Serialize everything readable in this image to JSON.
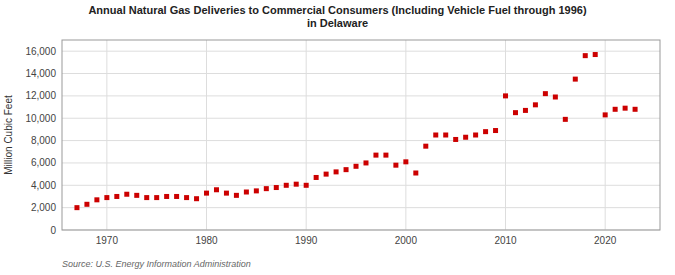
{
  "chart_data": {
    "type": "scatter",
    "title": "Annual Natural Gas Deliveries to Commercial Consumers (Including Vehicle Fuel through 1996)\nin Delaware",
    "ylabel": "Million Cubic Feet",
    "source": "Source: U.S. Energy Information Administration",
    "color": "#cc0000",
    "marker": "square",
    "grid": true,
    "xlim": [
      1965.5,
      2025.5
    ],
    "xticks": [
      1970,
      1980,
      1990,
      2000,
      2010,
      2020
    ],
    "ylim": [
      0,
      17000
    ],
    "yticks": [
      0,
      {
        "value": 2000,
        "label": "2,000"
      },
      {
        "value": 4000,
        "label": "4,000"
      },
      {
        "value": 6000,
        "label": "6,000"
      },
      {
        "value": 8000,
        "label": "8,000"
      },
      {
        "value": 10000,
        "label": "10,000"
      },
      {
        "value": 12000,
        "label": "12,000"
      },
      {
        "value": 14000,
        "label": "14,000"
      },
      {
        "value": 16000,
        "label": "16,000"
      }
    ],
    "x": [
      1967,
      1968,
      1969,
      1970,
      1971,
      1972,
      1973,
      1974,
      1975,
      1976,
      1977,
      1978,
      1979,
      1980,
      1981,
      1982,
      1983,
      1984,
      1985,
      1986,
      1987,
      1988,
      1989,
      1990,
      1991,
      1992,
      1993,
      1994,
      1995,
      1996,
      1997,
      1998,
      1999,
      2000,
      2001,
      2002,
      2003,
      2004,
      2005,
      2006,
      2007,
      2008,
      2009,
      2010,
      2011,
      2012,
      2013,
      2014,
      2015,
      2016,
      2017,
      2018,
      2019,
      2020,
      2021,
      2022,
      2023
    ],
    "values": [
      2000,
      2300,
      2700,
      2900,
      3000,
      3200,
      3100,
      2900,
      2900,
      3000,
      3000,
      2900,
      2800,
      3300,
      3600,
      3300,
      3100,
      3400,
      3500,
      3700,
      3800,
      4000,
      4100,
      4000,
      4700,
      5000,
      5200,
      5400,
      5700,
      6000,
      6700,
      6700,
      5800,
      6100,
      5100,
      7500,
      8500,
      8500,
      8100,
      8300,
      8500,
      8800,
      8900,
      12000,
      10500,
      10700,
      11200,
      12200,
      11900,
      9900,
      13500,
      15600,
      15700,
      10300,
      10800,
      10900,
      10800
    ]
  }
}
